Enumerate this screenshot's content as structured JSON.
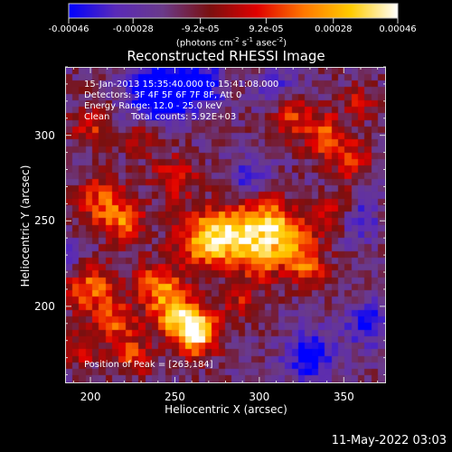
{
  "colorbar": {
    "tick_labels": [
      "-0.00046",
      "-0.00028",
      "-9.2e-05",
      "9.2e-05",
      "0.00028",
      "0.00046"
    ],
    "tick_values": [
      -0.00046,
      -0.00028,
      -9.2e-05,
      9.2e-05,
      0.00028,
      0.00046
    ],
    "range": [
      -0.00046,
      0.00046
    ],
    "units_prefix": "(photons cm",
    "units_exp1": "-2",
    "units_mid1": " s",
    "units_exp2": "-1",
    "units_mid2": " asec",
    "units_exp3": "-2",
    "units_suffix": ")",
    "colors": [
      "#0000ff",
      "#5a2ab8",
      "#6a3a8a",
      "#7a1010",
      "#e00000",
      "#ff7700",
      "#ffcc00",
      "#ffffff"
    ]
  },
  "chart_data": {
    "type": "heatmap",
    "title": "Reconstructed RHESSI Image",
    "xlabel": "Heliocentric X (arcsec)",
    "ylabel": "Heliocentric Y (arcsec)",
    "xlim": [
      185,
      375
    ],
    "ylim": [
      155,
      340
    ],
    "x_ticks": [
      200,
      250,
      300,
      350
    ],
    "y_ticks": [
      200,
      250,
      300
    ],
    "annotations": {
      "time_range": "15-Jan-2013 15:35:40.000 to 15:41:08.000",
      "detectors": "Detectors: 3F 4F 5F 6F 7F 8F, Att 0",
      "energy": "Energy Range: 12.0 - 25.0 keV",
      "method": "Clean",
      "counts": "Total counts: 5.92E+03",
      "peak": "Position of Peak = [263,184]"
    },
    "peak_position": [
      263,
      184
    ]
  },
  "footer": {
    "timestamp": "11-May-2022 03:03"
  }
}
